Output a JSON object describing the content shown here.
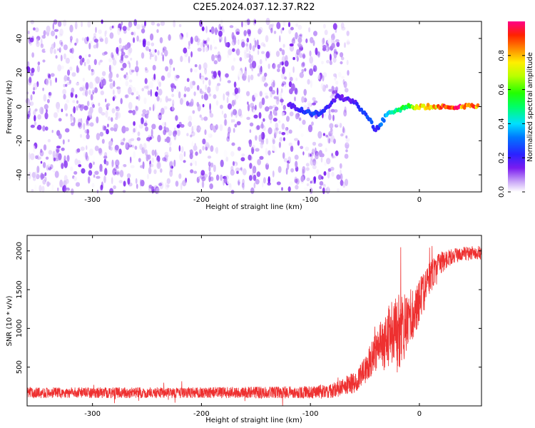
{
  "title": "C2E5.2024.037.12.37.R22",
  "colors": {
    "spectrogram_base": "#7a1cf0",
    "snr_line": "#ee3030",
    "axis": "#000000"
  },
  "chart_data": [
    {
      "type": "heatmap",
      "xlabel": "Height of straight line (km)",
      "ylabel": "Frequency (Hz)",
      "xlim": [
        -360,
        57
      ],
      "ylim": [
        -50,
        50
      ],
      "x_ticks": [
        -300,
        -200,
        -100,
        0
      ],
      "x_tick_labels": [
        "-300",
        "-200",
        "-100",
        "0"
      ],
      "y_ticks": [
        -40,
        -20,
        0,
        20,
        40
      ],
      "y_tick_labels": [
        "-40",
        "-20",
        "0",
        "20",
        "40"
      ],
      "grid": false,
      "colorbar": {
        "label": "Normalized spectral amplitude",
        "range": [
          0,
          1
        ],
        "ticks": [
          0.0,
          0.2,
          0.4,
          0.6,
          0.8
        ],
        "tick_labels": [
          "0.0",
          "0.2",
          "0.4",
          "0.6",
          "0.8"
        ],
        "colormap": "rainbow (purple→blue→cyan→green→yellow→red→magenta)"
      },
      "noise_region": {
        "x_from": -360,
        "x_to": -65,
        "frequency_span": [
          -50,
          50
        ],
        "amplitude": [
          0.0,
          0.15
        ]
      },
      "signal_track": [
        {
          "x": -120,
          "f": 1,
          "a": 0.15
        },
        {
          "x": -100,
          "f": -4,
          "a": 0.3
        },
        {
          "x": -90,
          "f": -4,
          "a": 0.25
        },
        {
          "x": -75,
          "f": 6,
          "a": 0.18
        },
        {
          "x": -60,
          "f": 3,
          "a": 0.2
        },
        {
          "x": -45,
          "f": -8,
          "a": 0.3
        },
        {
          "x": -40,
          "f": -14,
          "a": 0.2
        },
        {
          "x": -30,
          "f": -5,
          "a": 0.45
        },
        {
          "x": -20,
          "f": -2,
          "a": 0.55
        },
        {
          "x": -10,
          "f": 0,
          "a": 0.65
        },
        {
          "x": 0,
          "f": 0,
          "a": 0.8
        },
        {
          "x": 20,
          "f": 0,
          "a": 0.9
        },
        {
          "x": 40,
          "f": 0,
          "a": 1.0
        },
        {
          "x": 55,
          "f": 0,
          "a": 0.9
        }
      ]
    },
    {
      "type": "line",
      "xlabel": "Height of straight line (km)",
      "ylabel": "SNR (10 * v/v)",
      "xlim": [
        -360,
        57
      ],
      "ylim": [
        0,
        2200
      ],
      "x_ticks": [
        -300,
        -200,
        -100,
        0
      ],
      "x_tick_labels": [
        "-300",
        "-200",
        "-100",
        "0"
      ],
      "y_ticks": [
        500,
        1000,
        1500,
        2000
      ],
      "y_tick_labels": [
        "500",
        "1000",
        "1500",
        "2000"
      ],
      "grid": false,
      "series": [
        {
          "x": [
            -360,
            -300,
            -200,
            -100,
            -80,
            -60,
            -50,
            -40,
            -30,
            -20,
            -10,
            0,
            10,
            20,
            30,
            40,
            57
          ],
          "y": [
            170,
            170,
            170,
            175,
            200,
            300,
            450,
            700,
            850,
            950,
            1100,
            1350,
            1650,
            1850,
            1930,
            1960,
            1980
          ],
          "noise_amplitude": [
            70,
            70,
            70,
            80,
            100,
            140,
            180,
            260,
            400,
            520,
            380,
            300,
            220,
            140,
            100,
            90,
            90
          ]
        }
      ]
    }
  ]
}
